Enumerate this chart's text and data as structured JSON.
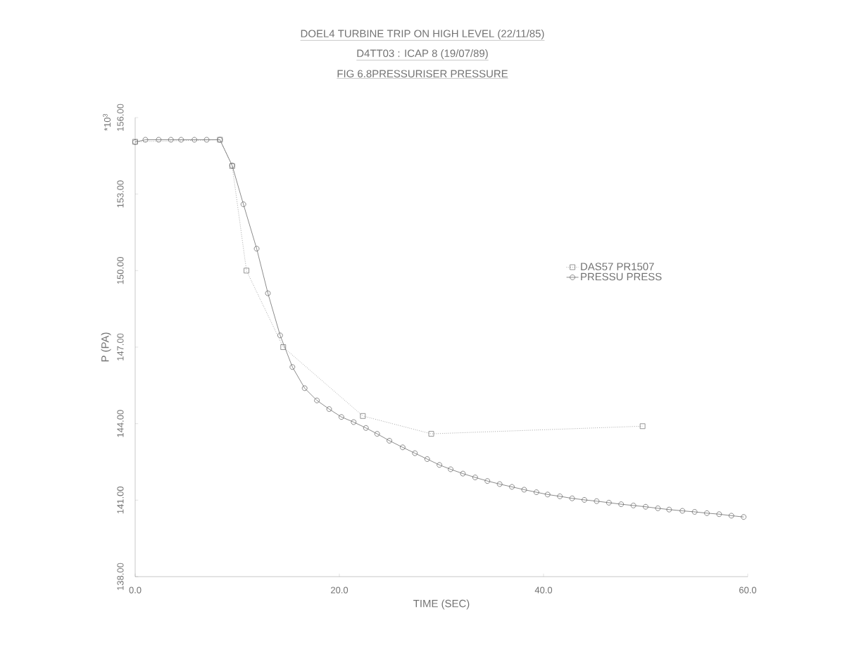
{
  "chart_data": {
    "type": "line",
    "title": "DOEL4 TURBINE TRIP ON HIGH LEVEL (22/11/85)",
    "subtitle": "D4TT03 : ICAP 8 (19/07/89)",
    "annotations": [
      "FIG 6.8PRESSURISER PRESSURE",
      "*10$^{3}$"
    ],
    "xlabel": "TIME (SEC)",
    "ylabel": "P (PA)",
    "xlim": [
      0,
      60
    ],
    "ylim": [
      138,
      156
    ],
    "xticks": [
      {
        "value": 0,
        "label": "0.0"
      },
      {
        "value": 20,
        "label": "20.0"
      },
      {
        "value": 40,
        "label": "40.0"
      },
      {
        "value": 60,
        "label": "60.0"
      }
    ],
    "yticks": [
      {
        "value": 138,
        "label": "138.00"
      },
      {
        "value": 141,
        "label": "141.00"
      },
      {
        "value": 144,
        "label": "144.00"
      },
      {
        "value": 147,
        "label": "147.00"
      },
      {
        "value": 150,
        "label": "150.00"
      },
      {
        "value": 153,
        "label": "153.00"
      },
      {
        "value": 156,
        "label": "156.00"
      }
    ],
    "legend": "right",
    "series": [
      {
        "name": "DAS57 PR1507",
        "color": "#7a7a7a",
        "marker": "square",
        "line_style": "dotted",
        "x": [
          0,
          8.3,
          9.5,
          10.9,
          14.5,
          22.3,
          29,
          49.7
        ],
        "values": [
          155.05,
          155.13,
          154.1,
          150.0,
          147.0,
          144.3,
          143.6,
          143.9
        ]
      },
      {
        "name": "PRESSU PRESS",
        "color": "#6e6e6e",
        "marker": "circle",
        "line_style": "solid",
        "x": [
          0,
          1.0,
          2.3,
          3.5,
          4.5,
          5.8,
          7.0,
          8.3,
          9.5,
          10.6,
          11.9,
          13.0,
          14.2,
          15.4,
          16.6,
          17.8,
          19.0,
          20.2,
          21.4,
          22.6,
          23.7,
          24.9,
          26.2,
          27.4,
          28.6,
          29.8,
          30.9,
          32.1,
          33.3,
          34.5,
          35.7,
          36.9,
          38.1,
          39.3,
          40.4,
          41.6,
          42.8,
          44.0,
          45.2,
          46.4,
          47.6,
          48.8,
          50.0,
          51.2,
          52.3,
          53.6,
          54.8,
          56.0,
          57.2,
          58.4,
          59.6
        ],
        "values": [
          155.04,
          155.13,
          155.13,
          155.13,
          155.13,
          155.13,
          155.13,
          155.13,
          154.12,
          152.6,
          150.86,
          149.11,
          147.46,
          146.22,
          145.39,
          144.91,
          144.57,
          144.26,
          144.06,
          143.83,
          143.6,
          143.33,
          143.07,
          142.84,
          142.61,
          142.38,
          142.21,
          142.04,
          141.89,
          141.75,
          141.63,
          141.52,
          141.41,
          141.31,
          141.22,
          141.15,
          141.07,
          141.01,
          140.96,
          140.9,
          140.84,
          140.79,
          140.74,
          140.68,
          140.63,
          140.58,
          140.54,
          140.49,
          140.45,
          140.39,
          140.34
        ]
      }
    ]
  }
}
